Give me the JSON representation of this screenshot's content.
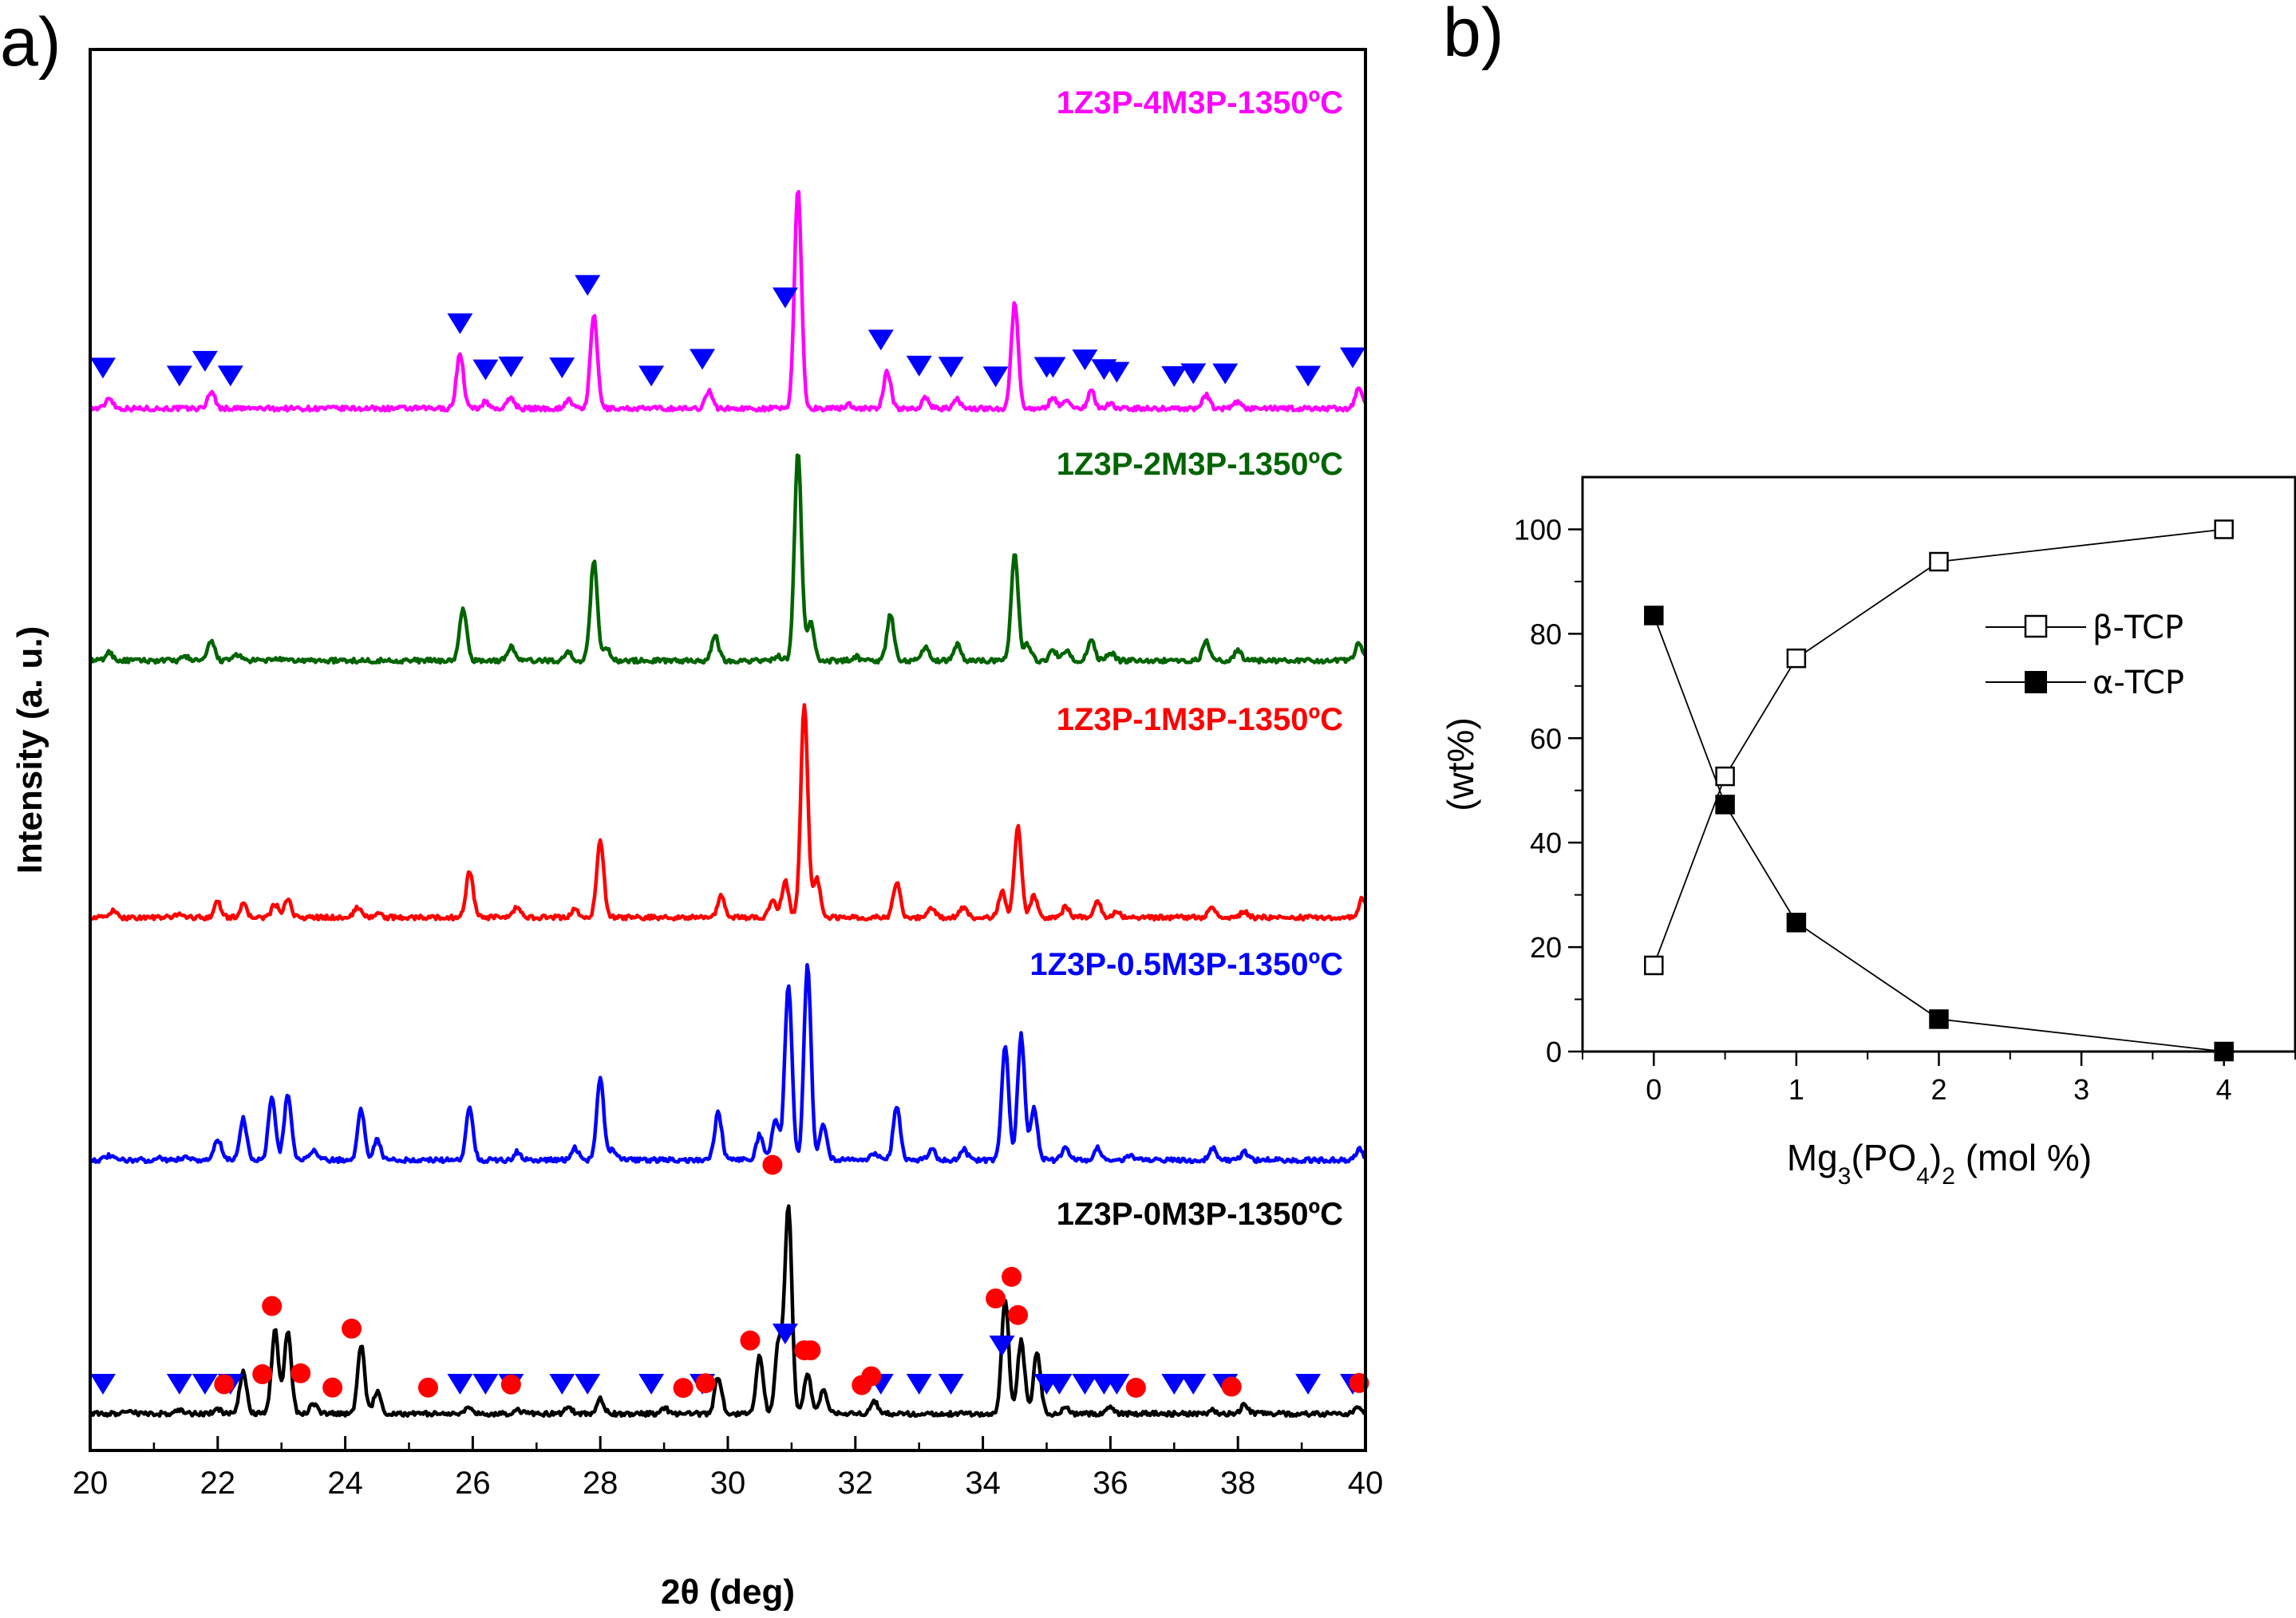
{
  "panel_a_letter": "a)",
  "panel_b_letter": "b)",
  "chart_data": [
    {
      "type": "line",
      "panel": "a",
      "xlabel": "2θ (deg)",
      "ylabel": "Intensity (a. u.)",
      "xlim": [
        20,
        40
      ],
      "xticks": [
        "20",
        "22",
        "24",
        "26",
        "28",
        "30",
        "32",
        "34",
        "36",
        "38",
        "40"
      ],
      "y_ticks_shown": false,
      "series": [
        {
          "name": "1Z3P-4M3P-1350ºC",
          "color": "#ff00ff",
          "offset": 4,
          "amp": 0.95,
          "peaks": [
            [
              20.3,
              0.05
            ],
            [
              21.9,
              0.08
            ],
            [
              25.8,
              0.25
            ],
            [
              26.2,
              0.03
            ],
            [
              26.6,
              0.05
            ],
            [
              27.5,
              0.04
            ],
            [
              27.9,
              0.42
            ],
            [
              29.7,
              0.08
            ],
            [
              31.1,
              1.0
            ],
            [
              31.9,
              0.02
            ],
            [
              32.5,
              0.17
            ],
            [
              33.1,
              0.05
            ],
            [
              33.6,
              0.04
            ],
            [
              34.5,
              0.48
            ],
            [
              35.1,
              0.05
            ],
            [
              35.3,
              0.04
            ],
            [
              35.7,
              0.08
            ],
            [
              36.0,
              0.02
            ],
            [
              37.5,
              0.06
            ],
            [
              38.0,
              0.03
            ],
            [
              39.9,
              0.09
            ]
          ],
          "markers": {
            "beta_tcp": [
              20.2,
              21.4,
              21.8,
              22.2,
              25.8,
              26.2,
              26.6,
              27.4,
              27.8,
              28.8,
              29.6,
              30.9,
              32.4,
              33.0,
              33.5,
              34.2,
              35.0,
              35.1,
              35.6,
              35.9,
              36.1,
              37.0,
              37.3,
              37.8,
              39.1,
              39.8
            ]
          }
        },
        {
          "name": "1Z3P-2M3P-1350ºC",
          "color": "#006400",
          "offset": 3,
          "amp": 0.9,
          "peaks": [
            [
              20.3,
              0.04
            ],
            [
              21.5,
              0.02
            ],
            [
              21.9,
              0.09
            ],
            [
              22.3,
              0.03
            ],
            [
              22.9,
              0.01
            ],
            [
              25.85,
              0.25
            ],
            [
              26.6,
              0.07
            ],
            [
              27.5,
              0.04
            ],
            [
              27.9,
              0.48
            ],
            [
              28.1,
              0.06
            ],
            [
              29.8,
              0.12
            ],
            [
              30.8,
              0.02
            ],
            [
              31.1,
              1.0
            ],
            [
              31.3,
              0.18
            ],
            [
              32.0,
              0.02
            ],
            [
              32.55,
              0.22
            ],
            [
              33.1,
              0.07
            ],
            [
              33.6,
              0.08
            ],
            [
              34.5,
              0.52
            ],
            [
              34.7,
              0.08
            ],
            [
              35.1,
              0.05
            ],
            [
              35.3,
              0.05
            ],
            [
              35.7,
              0.1
            ],
            [
              36.0,
              0.04
            ],
            [
              37.5,
              0.09
            ],
            [
              38.0,
              0.05
            ],
            [
              39.9,
              0.09
            ]
          ]
        },
        {
          "name": "1Z3P-1M3P-1350ºC",
          "color": "#ff0000",
          "offset": 2,
          "amp": 0.92,
          "peaks": [
            [
              20.35,
              0.03
            ],
            [
              21.4,
              0.02
            ],
            [
              22.0,
              0.07
            ],
            [
              22.4,
              0.06
            ],
            [
              22.9,
              0.06
            ],
            [
              23.1,
              0.08
            ],
            [
              24.2,
              0.05
            ],
            [
              24.5,
              0.02
            ],
            [
              25.95,
              0.22
            ],
            [
              26.7,
              0.05
            ],
            [
              27.6,
              0.04
            ],
            [
              28.0,
              0.36
            ],
            [
              29.9,
              0.1
            ],
            [
              30.7,
              0.08
            ],
            [
              30.9,
              0.17
            ],
            [
              31.2,
              1.0
            ],
            [
              31.4,
              0.18
            ],
            [
              32.65,
              0.17
            ],
            [
              33.2,
              0.04
            ],
            [
              33.7,
              0.05
            ],
            [
              34.3,
              0.12
            ],
            [
              34.55,
              0.43
            ],
            [
              34.8,
              0.1
            ],
            [
              35.3,
              0.05
            ],
            [
              35.8,
              0.08
            ],
            [
              36.1,
              0.03
            ],
            [
              37.6,
              0.05
            ],
            [
              38.1,
              0.03
            ],
            [
              39.95,
              0.09
            ]
          ]
        },
        {
          "name": "1Z3P-0.5M3P-1350ºC",
          "color": "#0000ff",
          "offset": 1,
          "amp": 0.9,
          "peaks": [
            [
              20.3,
              0.02
            ],
            [
              21.1,
              0.01
            ],
            [
              21.5,
              0.02
            ],
            [
              22.0,
              0.1
            ],
            [
              22.4,
              0.2
            ],
            [
              22.85,
              0.3
            ],
            [
              23.1,
              0.32
            ],
            [
              23.5,
              0.05
            ],
            [
              24.25,
              0.24
            ],
            [
              24.5,
              0.1
            ],
            [
              25.95,
              0.25
            ],
            [
              26.7,
              0.04
            ],
            [
              27.6,
              0.06
            ],
            [
              28.0,
              0.4
            ],
            [
              28.2,
              0.05
            ],
            [
              29.85,
              0.23
            ],
            [
              30.5,
              0.12
            ],
            [
              30.75,
              0.2
            ],
            [
              30.95,
              0.85
            ],
            [
              31.25,
              0.94
            ],
            [
              31.5,
              0.17
            ],
            [
              32.3,
              0.03
            ],
            [
              32.65,
              0.26
            ],
            [
              33.2,
              0.05
            ],
            [
              33.7,
              0.05
            ],
            [
              34.35,
              0.55
            ],
            [
              34.6,
              0.6
            ],
            [
              34.8,
              0.25
            ],
            [
              35.3,
              0.06
            ],
            [
              35.8,
              0.06
            ],
            [
              36.3,
              0.02
            ],
            [
              37.6,
              0.06
            ],
            [
              38.1,
              0.04
            ],
            [
              39.9,
              0.05
            ]
          ],
          "markers": {
            "alpha_tcp": [
              30.7
            ]
          }
        },
        {
          "name": "1Z3P-0M3P-1350ºC",
          "color": "#000000",
          "offset": 0,
          "amp": 0.9,
          "peaks": [
            [
              20.6,
              0.02
            ],
            [
              21.4,
              0.02
            ],
            [
              22.0,
              0.02
            ],
            [
              22.4,
              0.2
            ],
            [
              22.9,
              0.4
            ],
            [
              23.1,
              0.4
            ],
            [
              23.5,
              0.05
            ],
            [
              24.25,
              0.33
            ],
            [
              24.5,
              0.11
            ],
            [
              25.95,
              0.03
            ],
            [
              26.7,
              0.02
            ],
            [
              27.5,
              0.03
            ],
            [
              28.0,
              0.07
            ],
            [
              29.0,
              0.03
            ],
            [
              29.85,
              0.18
            ],
            [
              30.5,
              0.28
            ],
            [
              30.8,
              0.35
            ],
            [
              30.95,
              1.0
            ],
            [
              31.25,
              0.2
            ],
            [
              31.5,
              0.12
            ],
            [
              32.3,
              0.06
            ],
            [
              34.35,
              0.55
            ],
            [
              34.6,
              0.35
            ],
            [
              34.85,
              0.3
            ],
            [
              35.3,
              0.03
            ],
            [
              36.0,
              0.03
            ],
            [
              37.6,
              0.02
            ],
            [
              38.1,
              0.04
            ],
            [
              39.9,
              0.03
            ]
          ],
          "markers": {
            "beta_tcp": [
              20.2,
              21.4,
              21.8,
              22.2,
              25.8,
              26.2,
              26.6,
              27.4,
              27.8,
              28.8,
              29.6,
              30.9,
              32.4,
              33.0,
              33.5,
              34.3,
              35.0,
              35.2,
              35.6,
              35.9,
              36.1,
              37.0,
              37.3,
              37.8,
              39.1,
              39.8
            ],
            "alpha_tcp": [
              22.1,
              22.7,
              22.85,
              23.3,
              23.8,
              24.1,
              25.3,
              26.6,
              29.3,
              29.65,
              30.35,
              31.2,
              31.3,
              32.1,
              32.25,
              34.2,
              34.45,
              34.55,
              36.4,
              37.9,
              39.9
            ]
          }
        }
      ]
    },
    {
      "type": "line",
      "panel": "b",
      "xlabel_main": "Mg",
      "xlabel_sub1": "3",
      "xlabel_mid": "(PO",
      "xlabel_sub2": "4",
      "xlabel_close": ")",
      "xlabel_sub3": "2",
      "xlabel_tail": " (mol %)",
      "ylabel": "(wt%)",
      "xlim": [
        -0.5,
        4.5
      ],
      "ylim": [
        0,
        110
      ],
      "xticks": [
        0,
        1,
        2,
        3,
        4
      ],
      "yticks": [
        0,
        20,
        40,
        60,
        80,
        100
      ],
      "legend_position": "top-right",
      "series": [
        {
          "name": "β-TCP",
          "marker": "open-square",
          "x": [
            0,
            0.5,
            1,
            2,
            4
          ],
          "y": [
            16.5,
            52.7,
            75.3,
            93.8,
            100
          ]
        },
        {
          "name": "α-TCP",
          "marker": "filled-square",
          "x": [
            0,
            0.5,
            1,
            2,
            4
          ],
          "y": [
            83.5,
            47.3,
            24.7,
            6.2,
            0
          ]
        }
      ]
    }
  ]
}
